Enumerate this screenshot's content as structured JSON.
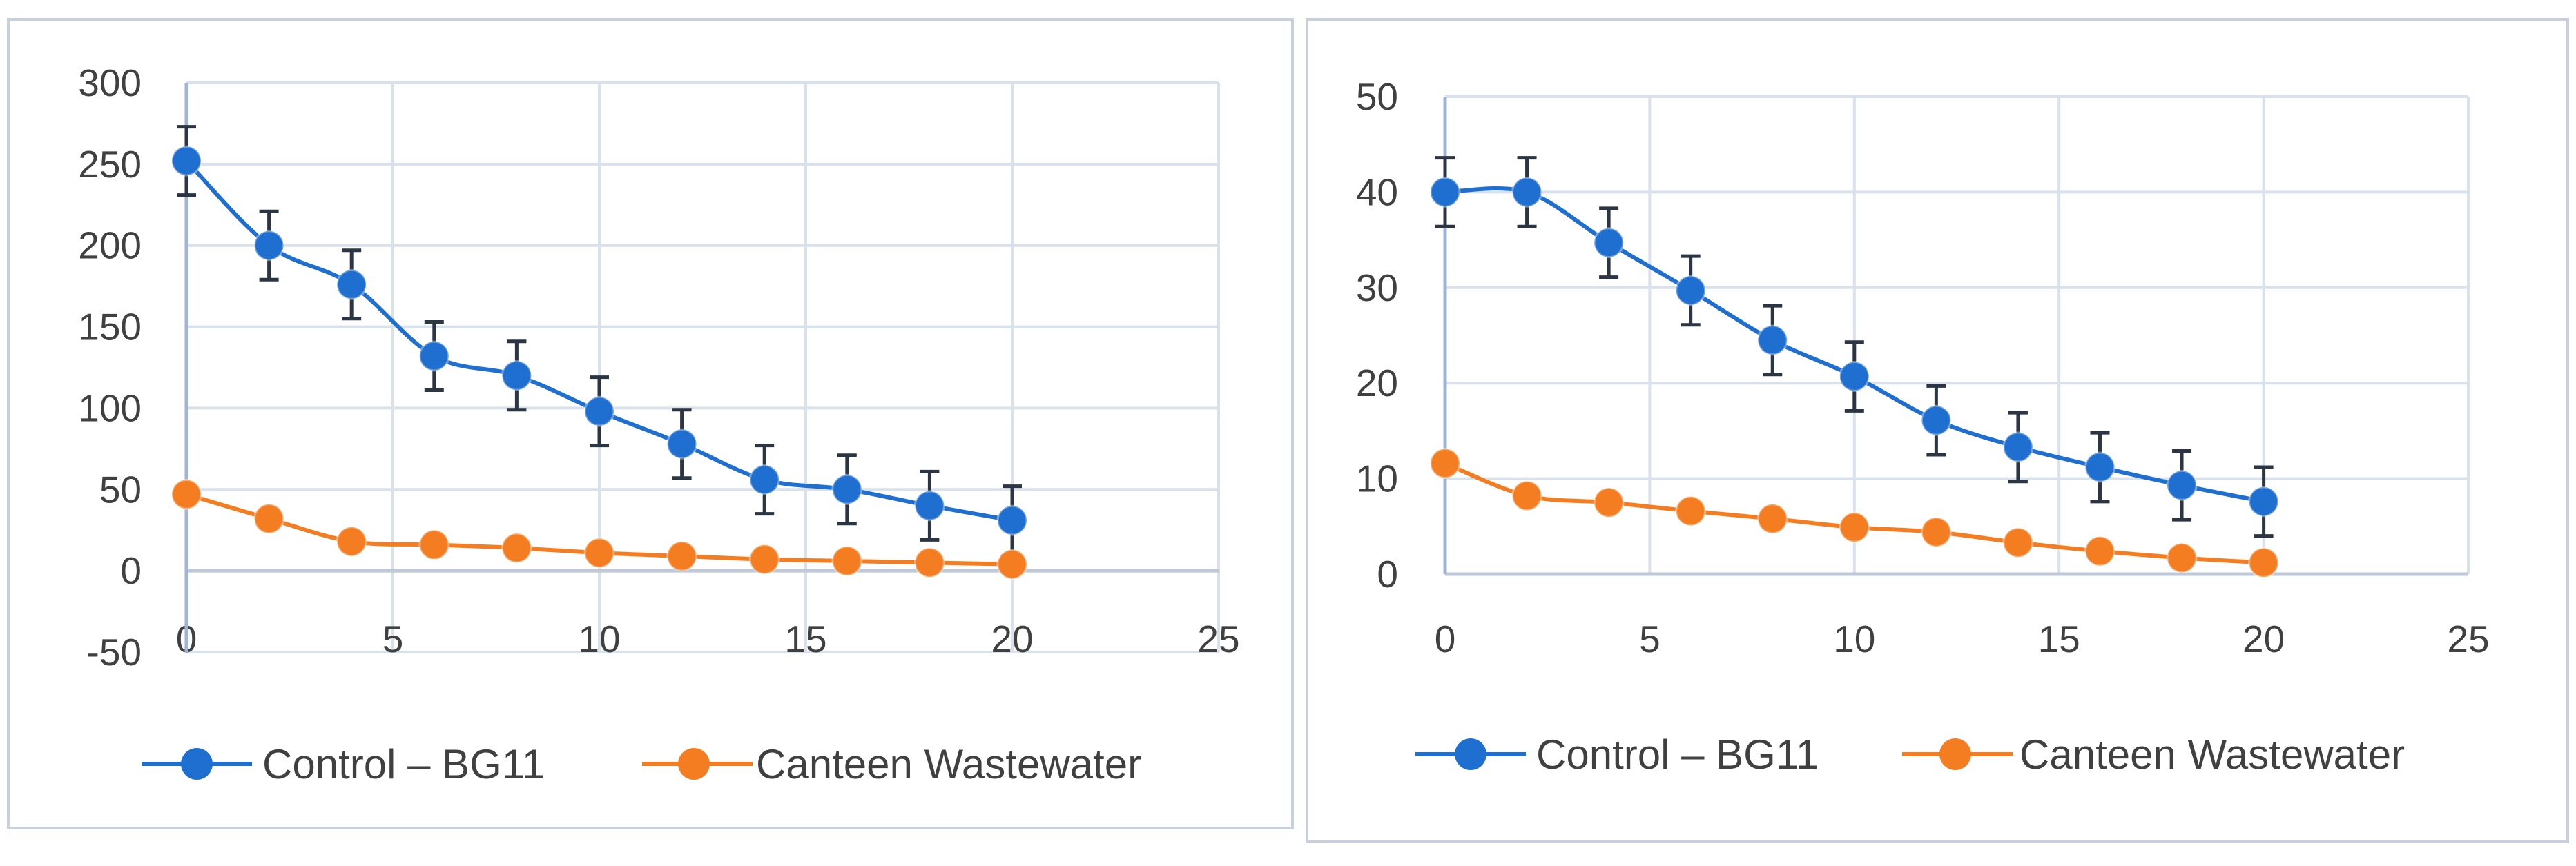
{
  "colors": {
    "control": "#1f6fd0",
    "canteen": "#f37d20",
    "grid": "#d9e1ec",
    "errorbar": "#2b3543",
    "frame": "#c8d0dc",
    "text": "#404040"
  },
  "chart_data": [
    {
      "type": "line",
      "title": "",
      "xlabel": "",
      "ylabel": "",
      "xlim": [
        0,
        25
      ],
      "ylim": [
        -50,
        300
      ],
      "x_ticks": [
        "0",
        "5",
        "10",
        "15",
        "20",
        "25"
      ],
      "y_ticks": [
        "-50",
        "0",
        "50",
        "100",
        "150",
        "200",
        "250",
        "300"
      ],
      "x": [
        0,
        2,
        4,
        6,
        8,
        10,
        12,
        14,
        16,
        18,
        20
      ],
      "series": [
        {
          "name": "Control – BG11",
          "color_key": "control",
          "values": [
            252,
            200,
            176,
            132,
            120,
            98,
            78,
            56,
            50,
            40,
            31
          ],
          "error": 21
        },
        {
          "name": "Canteen Wastewater",
          "color_key": "canteen",
          "values": [
            47,
            32,
            18,
            16,
            14,
            11,
            9,
            7,
            6,
            5,
            4
          ]
        }
      ],
      "legend": [
        "Control – BG11",
        "Canteen Wastewater"
      ],
      "legend_position": "bottom"
    },
    {
      "type": "line",
      "title": "",
      "xlabel": "",
      "ylabel": "",
      "xlim": [
        0,
        25
      ],
      "ylim": [
        0,
        50
      ],
      "x_ticks": [
        "0",
        "5",
        "10",
        "15",
        "20",
        "25"
      ],
      "y_ticks": [
        "0",
        "10",
        "20",
        "30",
        "40",
        "50"
      ],
      "x": [
        0,
        2,
        4,
        6,
        8,
        10,
        12,
        14,
        16,
        18,
        20
      ],
      "series": [
        {
          "name": "Control – BG11",
          "color_key": "control",
          "values": [
            40,
            40,
            34.7,
            29.7,
            24.5,
            20.7,
            16.1,
            13.3,
            11.2,
            9.3,
            7.6
          ],
          "error": 3.6
        },
        {
          "name": "Canteen Wastewater",
          "color_key": "canteen",
          "values": [
            11.6,
            8.2,
            7.5,
            6.6,
            5.8,
            4.9,
            4.4,
            3.3,
            2.4,
            1.7,
            1.2
          ]
        }
      ],
      "legend": [
        "Control – BG11",
        "Canteen Wastewater"
      ],
      "legend_position": "bottom"
    }
  ]
}
